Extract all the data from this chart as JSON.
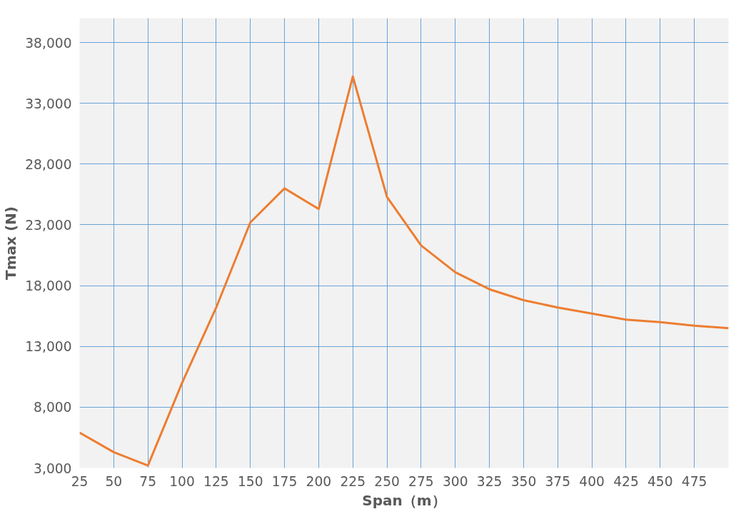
{
  "chart_data": {
    "type": "line",
    "xlabel": "Span（m）",
    "ylabel": "Tmax (N)",
    "x": [
      25,
      50,
      75,
      100,
      125,
      150,
      175,
      200,
      225,
      250,
      275,
      300,
      325,
      350,
      375,
      400,
      425,
      450,
      475,
      500
    ],
    "series": [
      {
        "color": "#ed7d31",
        "values": [
          5900,
          4300,
          3200,
          10000,
          16200,
          23200,
          26000,
          24300,
          35200,
          25300,
          21300,
          19100,
          17700,
          16800,
          16200,
          15700,
          15200,
          15000,
          14700,
          14500
        ]
      }
    ],
    "xlim": [
      25,
      500
    ],
    "xticks": [
      25,
      50,
      75,
      100,
      125,
      150,
      175,
      200,
      225,
      250,
      275,
      300,
      325,
      350,
      375,
      400,
      425,
      450,
      475
    ],
    "ylim": [
      3000,
      40000
    ],
    "yticks": [
      {
        "value": 3000,
        "label": "3,000"
      },
      {
        "value": 8000,
        "label": "8,000"
      },
      {
        "value": 13000,
        "label": "13,000"
      },
      {
        "value": 18000,
        "label": "18,000"
      },
      {
        "value": 23000,
        "label": "23,000"
      },
      {
        "value": 28000,
        "label": "28,000"
      },
      {
        "value": 33000,
        "label": "33,000"
      },
      {
        "value": 38000,
        "label": "38,000"
      }
    ],
    "grid": true,
    "marker": "none",
    "line_style": "solid"
  }
}
